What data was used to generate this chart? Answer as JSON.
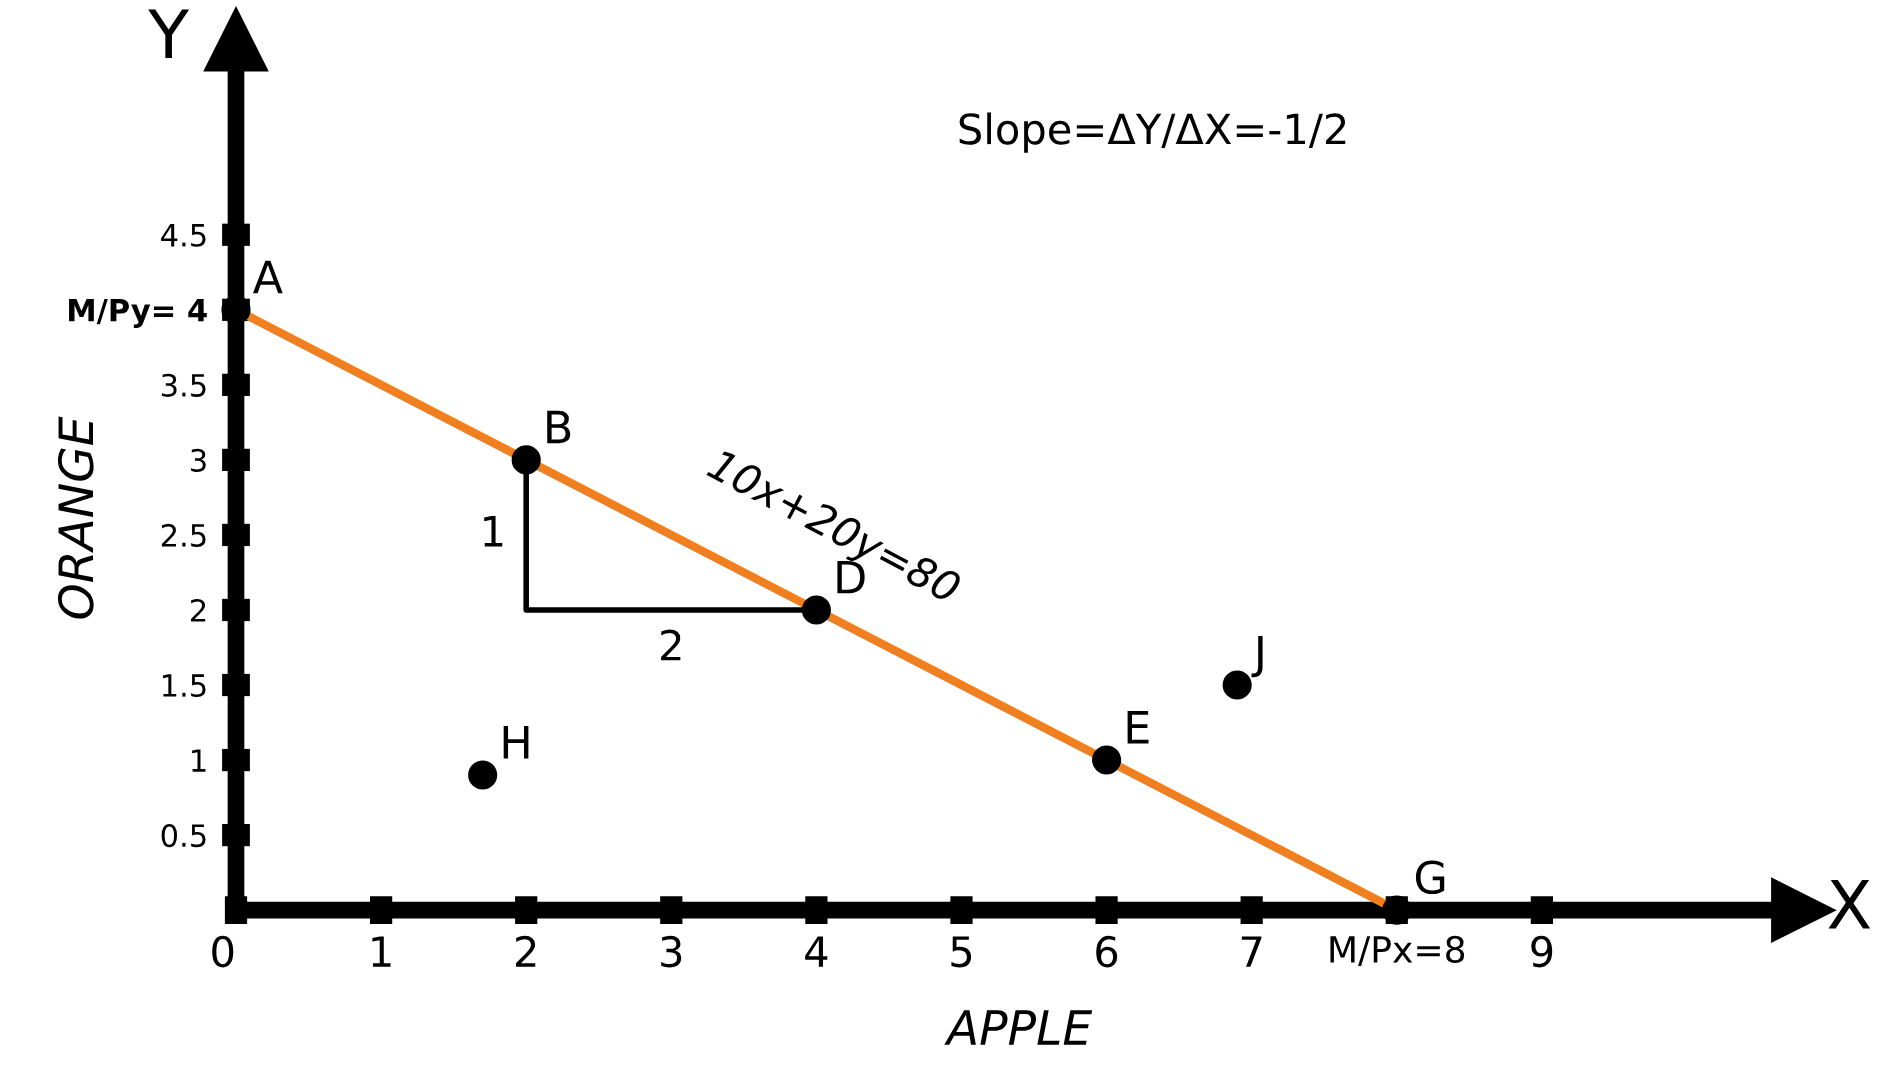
{
  "chart_data": {
    "type": "line",
    "xlabel": "APPLE",
    "ylabel": "ORANGE",
    "xlim": [
      0,
      10.8
    ],
    "ylim": [
      0,
      5.8
    ],
    "xticks": [
      {
        "value": 0,
        "label": "0"
      },
      1,
      2,
      3,
      4,
      5,
      6,
      7,
      {
        "value": 8,
        "label": "M/Px=8"
      },
      9
    ],
    "yticks": [
      0.5,
      1,
      1.5,
      2,
      2.5,
      3,
      3.5,
      {
        "value": 4,
        "label": "M/Py= 4"
      },
      4.5
    ],
    "grid": false,
    "legend": false,
    "series": [
      {
        "type": "line",
        "color": "#f07f1f",
        "marker": "circle",
        "x": [
          0,
          8
        ],
        "values": [
          4,
          0
        ]
      },
      {
        "type": "line",
        "color": "#000000",
        "marker": "none",
        "x": [
          2,
          2,
          4
        ],
        "values": [
          3,
          2,
          2
        ]
      },
      {
        "type": "scatter",
        "color": "#000000",
        "marker": "circle",
        "x": [
          2,
          4,
          6,
          1.7,
          6.9
        ],
        "values": [
          3,
          2,
          1,
          0.9,
          1.5
        ]
      }
    ],
    "annotations": [
      {
        "text": "A",
        "x": 0,
        "y": 4
      },
      {
        "text": "B",
        "x": 2,
        "y": 3
      },
      {
        "text": "D",
        "x": 4,
        "y": 2
      },
      {
        "text": "E",
        "x": 6,
        "y": 1
      },
      {
        "text": "G",
        "x": 8,
        "y": 0
      },
      {
        "text": "H",
        "x": 1.7,
        "y": 0.9
      },
      {
        "text": "J",
        "x": 6.9,
        "y": 1.5
      },
      {
        "text": "1",
        "x": 2,
        "y": 2.5
      },
      {
        "text": "2",
        "x": 3,
        "y": 2
      },
      {
        "text": "10x+20y=80",
        "x": 3,
        "y": 2.5
      },
      "Slope=ΔY/ΔX=-1/2",
      "X",
      "Y"
    ]
  }
}
